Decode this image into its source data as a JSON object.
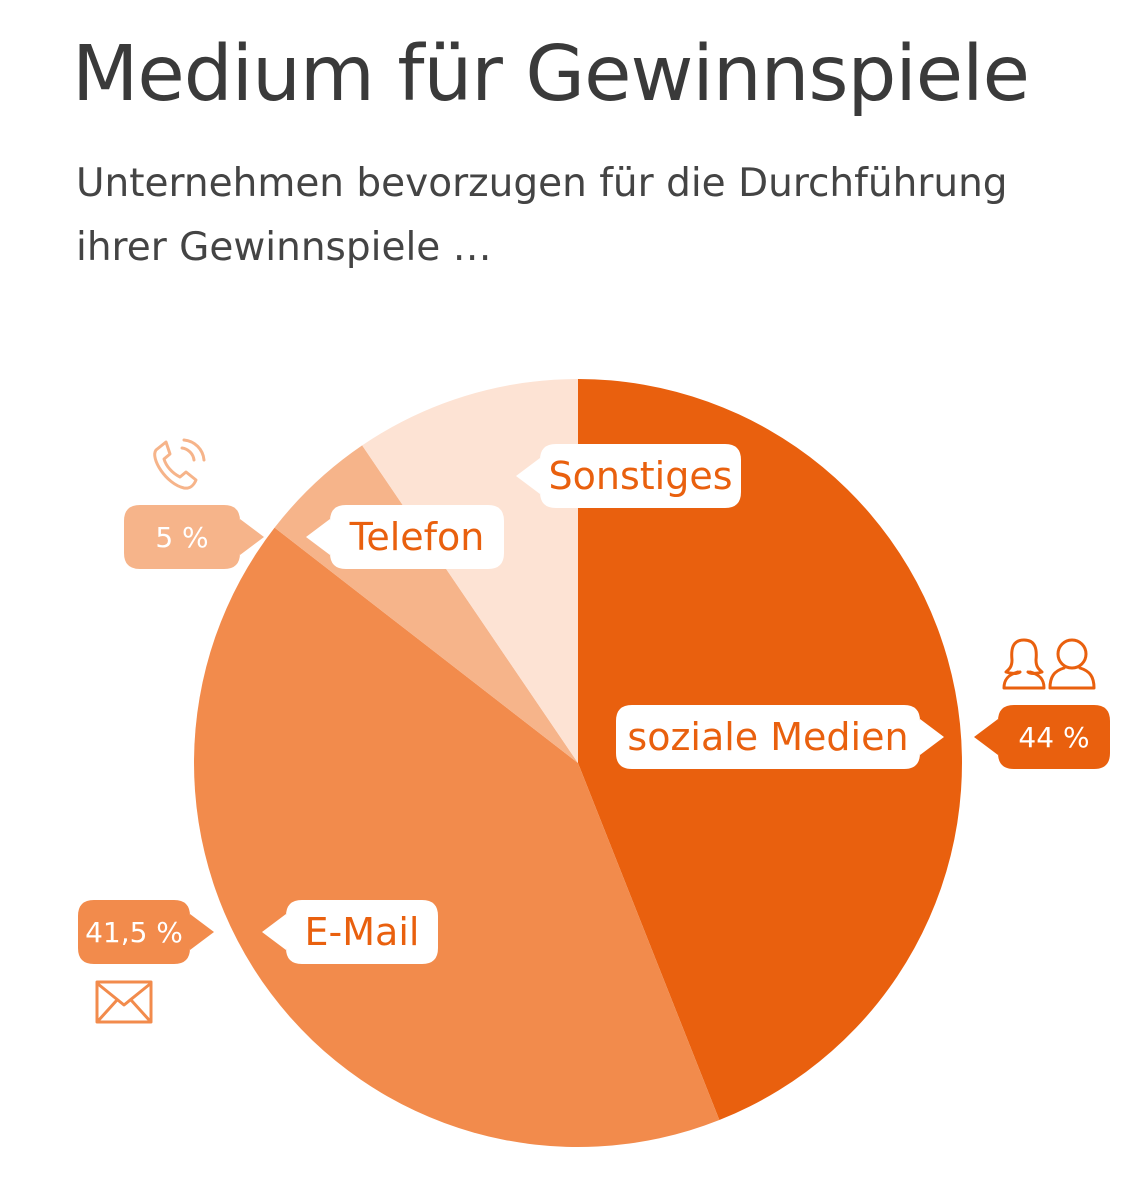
{
  "title": "Medium für Gewinnspiele",
  "subtitle": "Unternehmen bevorzugen für die Durchführung ihrer Gewinnspiele …",
  "chart_data": {
    "type": "pie",
    "slices": [
      {
        "label": "soziale Medien",
        "value": 44,
        "value_label": "44 %",
        "color": "#e9600e",
        "icon": "people-icon"
      },
      {
        "label": "E-Mail",
        "value": 41.5,
        "value_label": "41,5 %",
        "color": "#f28b4c",
        "icon": "envelope-icon"
      },
      {
        "label": "Telefon",
        "value": 5,
        "value_label": "5 %",
        "color": "#f6b48a",
        "icon": "phone-icon"
      },
      {
        "label": "Sonstiges",
        "value": 9.5,
        "color": "#fde3d4"
      }
    ],
    "start_angle": "12 o'clock",
    "direction": "clockwise"
  }
}
